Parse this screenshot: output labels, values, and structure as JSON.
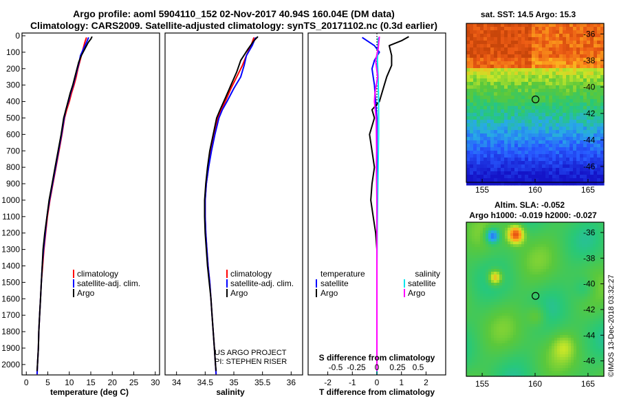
{
  "header": {
    "title_line1": "Argo profile: aoml 5904110_152 02-Nov-2017 40.94S 160.04E (DM data)",
    "title_line2": "Climatology: CARS2009. Satellite-adjusted climatology: synTS_20171102.nc (0.3d earlier)"
  },
  "depth_ticks": [
    "0",
    "100",
    "200",
    "300",
    "400",
    "500",
    "600",
    "700",
    "800",
    "900",
    "1000",
    "1100",
    "1200",
    "1300",
    "1400",
    "1500",
    "1600",
    "1700",
    "1800",
    "1900",
    "2000"
  ],
  "colors": {
    "climatology": "#ff0000",
    "satellite": "#0000ff",
    "argo": "#000000",
    "sat_salinity": "#00e5ee",
    "argo_salinity": "#ff00ff"
  },
  "panels": {
    "temperature": {
      "xlabel": "temperature (deg C)",
      "xticks": [
        "0",
        "5",
        "10",
        "15",
        "20",
        "25",
        "30"
      ],
      "legend": [
        "climatology",
        "satellite-adj. clim.",
        "Argo"
      ]
    },
    "salinity": {
      "xlabel": "salinity",
      "xticks": [
        "34",
        "34.5",
        "35",
        "35.5",
        "36"
      ],
      "legend": [
        "climatology",
        "satellite-adj. clim.",
        "Argo"
      ],
      "credit1": "US ARGO PROJECT",
      "credit2": "PI: STEPHEN RISER"
    },
    "difference": {
      "xlabel": "T difference from climatology",
      "top_label": "S difference from climatology",
      "xticks": [
        "-2",
        "-1",
        "0",
        "1",
        "2"
      ],
      "top_ticks": [
        "-0.5",
        "-0.25",
        "0",
        "0.25",
        "0.5"
      ],
      "legend_left_title": "temperature",
      "legend_right_title": "salinity",
      "legend_items": [
        "satellite",
        "Argo"
      ]
    }
  },
  "maps": {
    "sst": {
      "title": "sat. SST: 14.5 Argo: 15.3",
      "yticks": [
        "-36",
        "-38",
        "-40",
        "-42",
        "-44",
        "-46"
      ],
      "xticks": [
        "155",
        "160",
        "165"
      ]
    },
    "sla": {
      "title_line1": "Altim. SLA: -0.052",
      "title_line2": "Argo h1000: -0.019 h2000: -0.027",
      "yticks": [
        "-36",
        "-38",
        "-40",
        "-42",
        "-44",
        "-46"
      ],
      "xticks": [
        "155",
        "160",
        "165"
      ]
    },
    "stamp": "©IMOS 13-Dec-2018 03:32:27"
  },
  "chart_data": [
    {
      "type": "line",
      "title": "",
      "xlabel": "temperature (deg C)",
      "ylabel": "",
      "xlim": [
        -1,
        31
      ],
      "ylim": [
        2080,
        0
      ],
      "series": [
        {
          "name": "climatology",
          "points": [
            [
              14.0,
              10
            ],
            [
              13.6,
              40
            ],
            [
              13.2,
              80
            ],
            [
              12.8,
              120
            ],
            [
              12.4,
              160
            ],
            [
              12.0,
              200
            ],
            [
              11.6,
              250
            ],
            [
              11.1,
              300
            ],
            [
              10.5,
              350
            ],
            [
              10.0,
              400
            ],
            [
              9.4,
              450
            ],
            [
              8.9,
              500
            ],
            [
              8.3,
              600
            ],
            [
              7.6,
              700
            ],
            [
              6.9,
              800
            ],
            [
              6.2,
              900
            ],
            [
              5.5,
              1000
            ],
            [
              4.9,
              1100
            ],
            [
              4.5,
              1200
            ],
            [
              4.1,
              1300
            ],
            [
              3.8,
              1400
            ],
            [
              3.5,
              1500
            ],
            [
              3.3,
              1600
            ],
            [
              3.1,
              1700
            ],
            [
              2.9,
              1800
            ],
            [
              2.8,
              1900
            ],
            [
              2.6,
              2000
            ],
            [
              2.5,
              2060
            ]
          ]
        },
        {
          "name": "satellite-adj. clim.",
          "points": [
            [
              14.5,
              10
            ],
            [
              14.0,
              40
            ],
            [
              13.3,
              80
            ],
            [
              12.6,
              120
            ],
            [
              12.3,
              160
            ],
            [
              11.9,
              200
            ],
            [
              11.4,
              250
            ],
            [
              10.9,
              300
            ],
            [
              10.3,
              350
            ],
            [
              9.8,
              400
            ],
            [
              9.2,
              450
            ],
            [
              8.8,
              500
            ],
            [
              8.2,
              600
            ],
            [
              7.5,
              700
            ],
            [
              6.8,
              800
            ],
            [
              6.1,
              900
            ],
            [
              5.4,
              1000
            ],
            [
              4.8,
              1100
            ],
            [
              4.4,
              1200
            ],
            [
              4.0,
              1300
            ],
            [
              3.7,
              1400
            ],
            [
              3.5,
              1500
            ],
            [
              3.3,
              1600
            ],
            [
              3.1,
              1700
            ],
            [
              2.9,
              1800
            ],
            [
              2.8,
              1900
            ],
            [
              2.6,
              2000
            ],
            [
              2.5,
              2060
            ]
          ]
        },
        {
          "name": "Argo",
          "points": [
            [
              15.3,
              5
            ],
            [
              15.0,
              20
            ],
            [
              14.4,
              40
            ],
            [
              13.6,
              80
            ],
            [
              12.8,
              120
            ],
            [
              12.2,
              160
            ],
            [
              11.8,
              200
            ],
            [
              11.3,
              250
            ],
            [
              10.8,
              300
            ],
            [
              10.2,
              350
            ],
            [
              9.7,
              400
            ],
            [
              9.2,
              450
            ],
            [
              8.7,
              500
            ],
            [
              8.1,
              600
            ],
            [
              7.4,
              700
            ],
            [
              6.7,
              800
            ],
            [
              6.0,
              900
            ],
            [
              5.3,
              1000
            ],
            [
              4.8,
              1100
            ],
            [
              4.3,
              1200
            ],
            [
              3.9,
              1300
            ],
            [
              3.7,
              1400
            ],
            [
              3.5,
              1500
            ],
            [
              3.3,
              1600
            ],
            [
              3.1,
              1700
            ],
            [
              2.9,
              1800
            ],
            [
              2.8,
              1900
            ],
            [
              2.6,
              2000
            ],
            [
              2.5,
              2040
            ]
          ]
        }
      ]
    },
    {
      "type": "line",
      "title": "",
      "xlabel": "salinity",
      "ylabel": "",
      "xlim": [
        33.8,
        36.2
      ],
      "ylim": [
        2080,
        0
      ],
      "series": [
        {
          "name": "climatology",
          "points": [
            [
              35.35,
              10
            ],
            [
              35.3,
              60
            ],
            [
              35.22,
              120
            ],
            [
              35.15,
              180
            ],
            [
              35.05,
              250
            ],
            [
              34.95,
              320
            ],
            [
              34.85,
              400
            ],
            [
              34.78,
              450
            ],
            [
              34.72,
              500
            ],
            [
              34.66,
              600
            ],
            [
              34.6,
              700
            ],
            [
              34.56,
              800
            ],
            [
              34.52,
              900
            ],
            [
              34.5,
              1000
            ],
            [
              34.5,
              1100
            ],
            [
              34.51,
              1200
            ],
            [
              34.53,
              1300
            ],
            [
              34.55,
              1400
            ],
            [
              34.58,
              1500
            ],
            [
              34.6,
              1600
            ],
            [
              34.62,
              1700
            ],
            [
              34.64,
              1800
            ],
            [
              34.66,
              1900
            ],
            [
              34.68,
              2000
            ],
            [
              34.69,
              2060
            ]
          ]
        },
        {
          "name": "satellite-adj. clim.",
          "points": [
            [
              35.38,
              10
            ],
            [
              35.32,
              60
            ],
            [
              35.22,
              120
            ],
            [
              35.18,
              180
            ],
            [
              35.12,
              250
            ],
            [
              35.0,
              320
            ],
            [
              34.88,
              400
            ],
            [
              34.8,
              450
            ],
            [
              34.74,
              500
            ],
            [
              34.67,
              600
            ],
            [
              34.61,
              700
            ],
            [
              34.56,
              800
            ],
            [
              34.52,
              900
            ],
            [
              34.5,
              1000
            ],
            [
              34.5,
              1100
            ],
            [
              34.51,
              1200
            ],
            [
              34.53,
              1300
            ],
            [
              34.55,
              1400
            ],
            [
              34.58,
              1500
            ],
            [
              34.6,
              1600
            ],
            [
              34.62,
              1700
            ],
            [
              34.64,
              1800
            ],
            [
              34.66,
              1900
            ],
            [
              34.68,
              2000
            ],
            [
              34.69,
              2060
            ]
          ]
        },
        {
          "name": "Argo",
          "points": [
            [
              35.42,
              5
            ],
            [
              35.35,
              30
            ],
            [
              35.25,
              80
            ],
            [
              35.12,
              150
            ],
            [
              35.05,
              220
            ],
            [
              34.95,
              300
            ],
            [
              34.85,
              380
            ],
            [
              34.76,
              450
            ],
            [
              34.7,
              500
            ],
            [
              34.64,
              600
            ],
            [
              34.58,
              700
            ],
            [
              34.54,
              800
            ],
            [
              34.51,
              900
            ],
            [
              34.49,
              1000
            ],
            [
              34.49,
              1100
            ],
            [
              34.5,
              1200
            ],
            [
              34.52,
              1300
            ],
            [
              34.54,
              1400
            ],
            [
              34.57,
              1500
            ],
            [
              34.6,
              1600
            ],
            [
              34.62,
              1700
            ],
            [
              34.64,
              1800
            ],
            [
              34.66,
              1900
            ],
            [
              34.68,
              2000
            ],
            [
              34.69,
              2040
            ]
          ]
        }
      ]
    },
    {
      "type": "line",
      "title": "",
      "xlabel": "T difference from climatology",
      "ylabel": "",
      "xlim": [
        -2.8,
        2.8
      ],
      "ylim": [
        2080,
        0
      ],
      "series": [
        {
          "name": "temperature satellite",
          "points": [
            [
              -0.6,
              10
            ],
            [
              -0.4,
              30
            ],
            [
              -0.1,
              60
            ],
            [
              0.1,
              100
            ],
            [
              -0.1,
              150
            ],
            [
              -0.2,
              200
            ],
            [
              -0.15,
              250
            ],
            [
              -0.1,
              300
            ],
            [
              -0.05,
              400
            ],
            [
              0,
              500
            ],
            [
              0,
              700
            ],
            [
              0,
              900
            ],
            [
              0,
              1100
            ],
            [
              0,
              1300
            ],
            [
              0,
              1500
            ],
            [
              0,
              1700
            ],
            [
              0,
              1900
            ],
            [
              0,
              2060
            ]
          ]
        },
        {
          "name": "temperature Argo",
          "points": [
            [
              1.3,
              5
            ],
            [
              1.0,
              30
            ],
            [
              0.5,
              60
            ],
            [
              0.6,
              120
            ],
            [
              0.6,
              180
            ],
            [
              0.4,
              250
            ],
            [
              0.3,
              300
            ],
            [
              0.1,
              400
            ],
            [
              -0.2,
              450
            ],
            [
              -0.1,
              500
            ],
            [
              -0.3,
              600
            ],
            [
              -0.2,
              700
            ],
            [
              -0.1,
              800
            ],
            [
              -0.2,
              900
            ],
            [
              -0.25,
              1000
            ],
            [
              -0.15,
              1100
            ],
            [
              -0.05,
              1200
            ],
            [
              0.0,
              1300
            ],
            [
              0.0,
              1500
            ],
            [
              0.0,
              1700
            ],
            [
              0.0,
              1900
            ],
            [
              0.0,
              2040
            ]
          ]
        },
        {
          "name": "salinity satellite",
          "points": [
            [
              0.05,
              10
            ],
            [
              0.04,
              80
            ],
            [
              0.02,
              150
            ],
            [
              0.05,
              250
            ],
            [
              0.07,
              400
            ],
            [
              0.07,
              600
            ],
            [
              0.05,
              800
            ],
            [
              0.03,
              1000
            ],
            [
              0.01,
              1200
            ],
            [
              0.0,
              1400
            ],
            [
              0.0,
              1600
            ],
            [
              0.0,
              2060
            ]
          ]
        },
        {
          "name": "salinity Argo",
          "points": [
            [
              0.1,
              5
            ],
            [
              0.08,
              30
            ],
            [
              0.05,
              80
            ],
            [
              -0.05,
              150
            ],
            [
              0.03,
              250
            ],
            [
              -0.08,
              350
            ],
            [
              -0.1,
              400
            ],
            [
              -0.03,
              500
            ],
            [
              -0.02,
              600
            ],
            [
              -0.01,
              700
            ],
            [
              -0.02,
              800
            ],
            [
              -0.01,
              900
            ],
            [
              0.0,
              1000
            ],
            [
              0.0,
              1200
            ],
            [
              0.0,
              1400
            ],
            [
              0.0,
              1600
            ],
            [
              0.0,
              2040
            ]
          ]
        }
      ]
    },
    {
      "type": "heatmap",
      "title": "sat. SST: 14.5 Argo: 15.3",
      "xlim": [
        153.5,
        166.5
      ],
      "ylim": [
        -47.2,
        -35.2
      ],
      "marker": [
        160.04,
        -40.94
      ]
    },
    {
      "type": "heatmap",
      "title": "Altim. SLA: -0.052",
      "xlim": [
        153.5,
        166.5
      ],
      "ylim": [
        -47.2,
        -35.2
      ],
      "marker": [
        160.04,
        -40.94
      ]
    }
  ]
}
